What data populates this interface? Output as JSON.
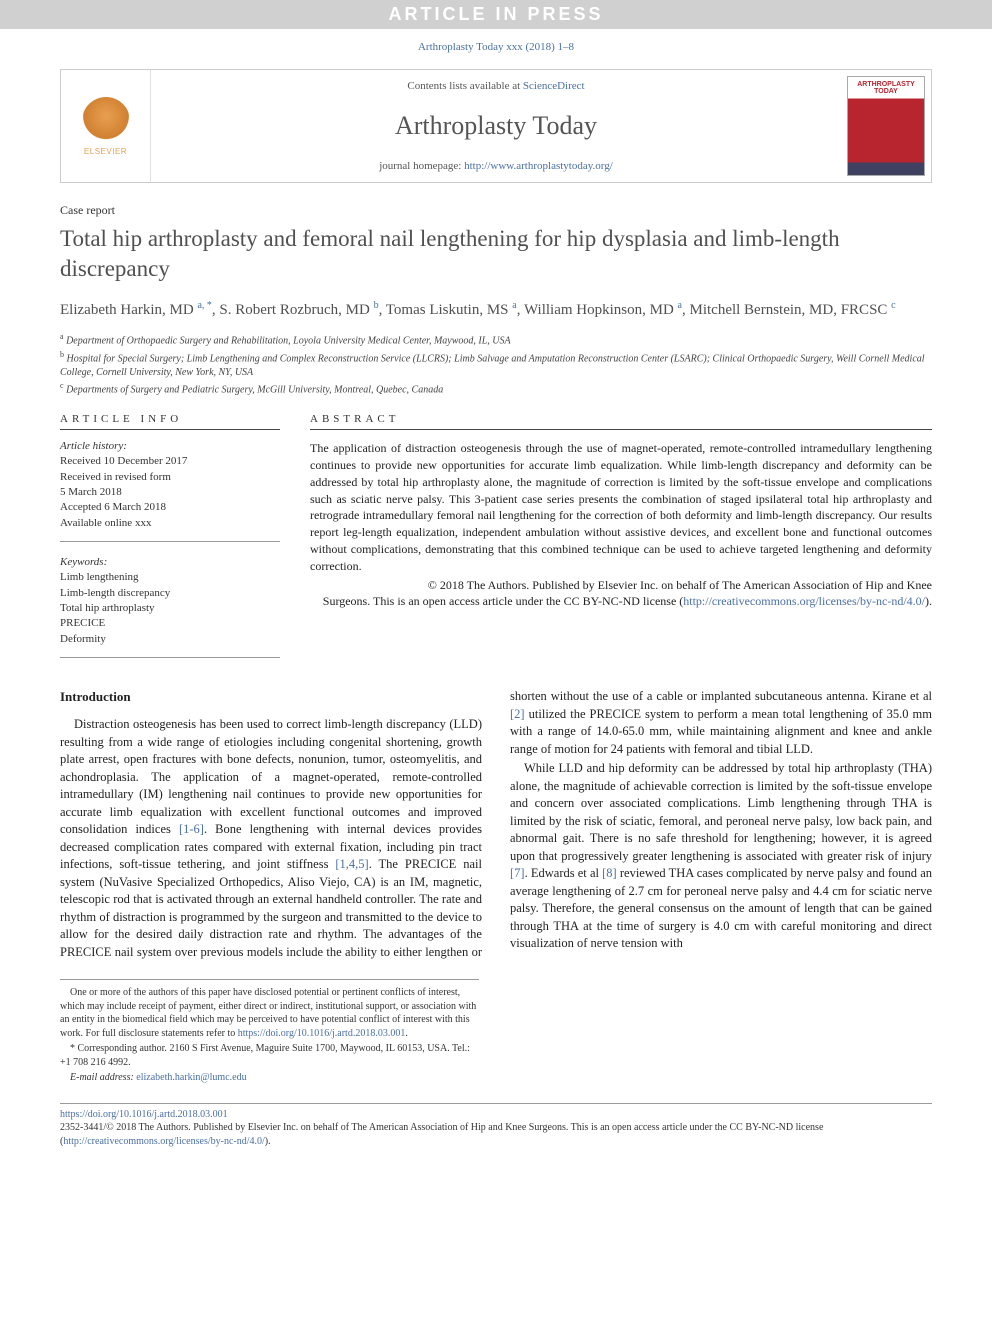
{
  "banner": "ARTICLE IN PRESS",
  "citation": "Arthroplasty Today xxx (2018) 1–8",
  "header": {
    "contents_prefix": "Contents lists available at ",
    "contents_link": "ScienceDirect",
    "journal": "Arthroplasty Today",
    "homepage_prefix": "journal homepage: ",
    "homepage_url": "http://www.arthroplastytoday.org/",
    "publisher": "ELSEVIER",
    "cover_title": "ARTHROPLASTY TODAY"
  },
  "article_type": "Case report",
  "title": "Total hip arthroplasty and femoral nail lengthening for hip dysplasia and limb-length discrepancy",
  "authors_html": "Elizabeth Harkin, MD <sup>a, *</sup>, S. Robert Rozbruch, MD <sup>b</sup>, Tomas Liskutin, MS <sup>a</sup>, William Hopkinson, MD <sup>a</sup>, Mitchell Bernstein, MD, FRCSC <sup>c</sup>",
  "affiliations": [
    "a Department of Orthopaedic Surgery and Rehabilitation, Loyola University Medical Center, Maywood, IL, USA",
    "b Hospital for Special Surgery; Limb Lengthening and Complex Reconstruction Service (LLCRS); Limb Salvage and Amputation Reconstruction Center (LSARC); Clinical Orthopaedic Surgery, Weill Cornell Medical College, Cornell University, New York, NY, USA",
    "c Departments of Surgery and Pediatric Surgery, McGill University, Montreal, Quebec, Canada"
  ],
  "info": {
    "header": "ARTICLE INFO",
    "history_label": "Article history:",
    "history": [
      "Received 10 December 2017",
      "Received in revised form",
      "5 March 2018",
      "Accepted 6 March 2018",
      "Available online xxx"
    ],
    "keywords_label": "Keywords:",
    "keywords": [
      "Limb lengthening",
      "Limb-length discrepancy",
      "Total hip arthroplasty",
      "PRECICE",
      "Deformity"
    ]
  },
  "abstract": {
    "header": "ABSTRACT",
    "text": "The application of distraction osteogenesis through the use of magnet-operated, remote-controlled intramedullary lengthening continues to provide new opportunities for accurate limb equalization. While limb-length discrepancy and deformity can be addressed by total hip arthroplasty alone, the magnitude of correction is limited by the soft-tissue envelope and complications such as sciatic nerve palsy. This 3-patient case series presents the combination of staged ipsilateral total hip arthroplasty and retrograde intramedullary femoral nail lengthening for the correction of both deformity and limb-length discrepancy. Our results report leg-length equalization, independent ambulation without assistive devices, and excellent bone and functional outcomes without complications, demonstrating that this combined technique can be used to achieve targeted lengthening and deformity correction.",
    "copyright_line1": "© 2018 The Authors. Published by Elsevier Inc. on behalf of The American Association of Hip and Knee",
    "copyright_line2": "Surgeons. This is an open access article under the CC BY-NC-ND license (",
    "license_url": "http://creativecommons.org/licenses/by-nc-nd/4.0/",
    "copyright_close": ")."
  },
  "body": {
    "heading": "Introduction",
    "p1_a": "Distraction osteogenesis has been used to correct limb-length discrepancy (LLD) resulting from a wide range of etiologies including congenital shortening, growth plate arrest, open fractures with bone defects, nonunion, tumor, osteomyelitis, and achondroplasia. The application of a magnet-operated, remote-controlled intramedullary (IM) lengthening nail continues to provide new opportunities for accurate limb equalization with excellent functional outcomes and improved consolidation indices ",
    "p1_cite1": "[1-6]",
    "p1_b": ". Bone lengthening with internal devices provides decreased complication rates compared with external fixation, including pin tract infections, soft-tissue tethering, and joint stiffness ",
    "p1_cite2": "[1,4,5]",
    "p1_c": ". The PRECICE nail system (NuVasive Specialized Orthopedics, Aliso Viejo, CA) is an IM, magnetic, telescopic rod that is activated through an external handheld controller. The rate and rhythm of distraction is programmed by the surgeon and transmitted to the device to allow for the desired daily distraction rate and rhythm. The advantages of the PRECICE nail system over previous models include the ability to either lengthen or shorten without the use of a cable or implanted subcutaneous antenna. Kirane et al ",
    "p1_cite3": "[2]",
    "p1_d": " utilized the PRECICE system to perform a mean total lengthening of 35.0 mm with a range of 14.0-65.0 mm, while maintaining alignment and knee and ankle range of motion for 24 patients with femoral and tibial LLD.",
    "p2_a": "While LLD and hip deformity can be addressed by total hip arthroplasty (THA) alone, the magnitude of achievable correction is limited by the soft-tissue envelope and concern over associated complications. Limb lengthening through THA is limited by the risk of sciatic, femoral, and peroneal nerve palsy, low back pain, and abnormal gait. There is no safe threshold for lengthening; however, it is agreed upon that progressively greater lengthening is associated with greater risk of injury ",
    "p2_cite1": "[7]",
    "p2_b": ". Edwards et al ",
    "p2_cite2": "[8]",
    "p2_c": " reviewed THA cases complicated by nerve palsy and found an average lengthening of 2.7 cm for peroneal nerve palsy and 4.4 cm for sciatic nerve palsy. Therefore, the general consensus on the amount of length that can be gained through THA at the time of surgery is 4.0 cm with careful monitoring and direct visualization of nerve tension with"
  },
  "footnotes": {
    "coi": "One or more of the authors of this paper have disclosed potential or pertinent conflicts of interest, which may include receipt of payment, either direct or indirect, institutional support, or association with an entity in the biomedical field which may be perceived to have potential conflict of interest with this work. For full disclosure statements refer to ",
    "coi_url": "https://doi.org/10.1016/j.artd.2018.03.001",
    "coi_close": ".",
    "corresp_label": "* Corresponding author. ",
    "corresp": "2160 S First Avenue, Maguire Suite 1700, Maywood, IL 60153, USA. Tel.: +1 708 216 4992.",
    "email_label": "E-mail address: ",
    "email": "elizabeth.harkin@lumc.edu"
  },
  "footer": {
    "doi": "https://doi.org/10.1016/j.artd.2018.03.001",
    "issn_line": "2352-3441/© 2018 The Authors. Published by Elsevier Inc. on behalf of The American Association of Hip and Knee Surgeons. This is an open access article under the CC BY-NC-ND license (",
    "license_url": "http://creativecommons.org/licenses/by-nc-nd/4.0/",
    "close": ")."
  },
  "colors": {
    "link": "#4a6fa5",
    "banner_bg": "#d0d0d0",
    "text": "#222222",
    "heading": "#505050"
  }
}
